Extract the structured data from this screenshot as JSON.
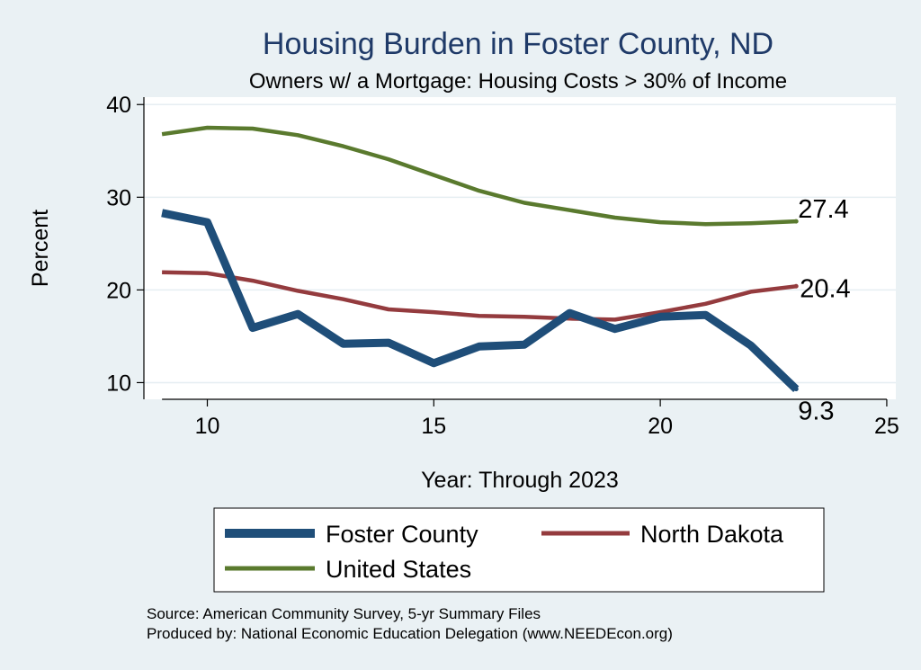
{
  "chart_data": {
    "type": "line",
    "title": "Housing Burden in Foster County, ND",
    "subtitle": "Owners w/ a Mortgage: Housing Costs > 30% of Income",
    "xlabel": "Year: Through 2023",
    "ylabel": "Percent",
    "xlim": [
      8.6,
      25.2
    ],
    "ylim": [
      8.2,
      40.8
    ],
    "x_ticks": [
      10,
      15,
      20,
      25
    ],
    "y_ticks": [
      10,
      20,
      30,
      40
    ],
    "grid": true,
    "legend_position": "bottom",
    "series": [
      {
        "name": "Foster County",
        "color": "#1f4e79",
        "x": [
          9,
          10,
          11,
          12,
          13,
          14,
          15,
          16,
          17,
          18,
          19,
          20,
          21,
          22,
          23
        ],
        "values": [
          28.3,
          27.3,
          15.9,
          17.4,
          14.2,
          14.3,
          12.1,
          13.9,
          14.1,
          17.5,
          15.8,
          17.1,
          17.3,
          14.0,
          9.3
        ],
        "end_label": "9.3"
      },
      {
        "name": "North Dakota",
        "color": "#943b3e",
        "x": [
          9,
          10,
          11,
          12,
          13,
          14,
          15,
          16,
          17,
          18,
          19,
          20,
          21,
          22,
          23
        ],
        "values": [
          21.9,
          21.8,
          21.0,
          19.9,
          19.0,
          17.9,
          17.6,
          17.2,
          17.1,
          16.9,
          16.8,
          17.6,
          18.5,
          19.8,
          20.4
        ],
        "end_label": "20.4"
      },
      {
        "name": "United States",
        "color": "#5a7a2e",
        "x": [
          9,
          10,
          11,
          12,
          13,
          14,
          15,
          16,
          17,
          18,
          19,
          20,
          21,
          22,
          23
        ],
        "values": [
          36.8,
          37.5,
          37.4,
          36.7,
          35.5,
          34.1,
          32.4,
          30.7,
          29.4,
          28.6,
          27.8,
          27.3,
          27.1,
          27.2,
          27.4
        ],
        "end_label": "27.4"
      }
    ],
    "legend": {
      "row1": [
        "Foster County",
        "North Dakota"
      ],
      "row2": [
        "United States"
      ]
    },
    "notes": [
      "Source: American Community Survey, 5-yr Summary Files",
      "Produced by: National Economic Education Delegation (www.NEEDEcon.org)"
    ]
  }
}
